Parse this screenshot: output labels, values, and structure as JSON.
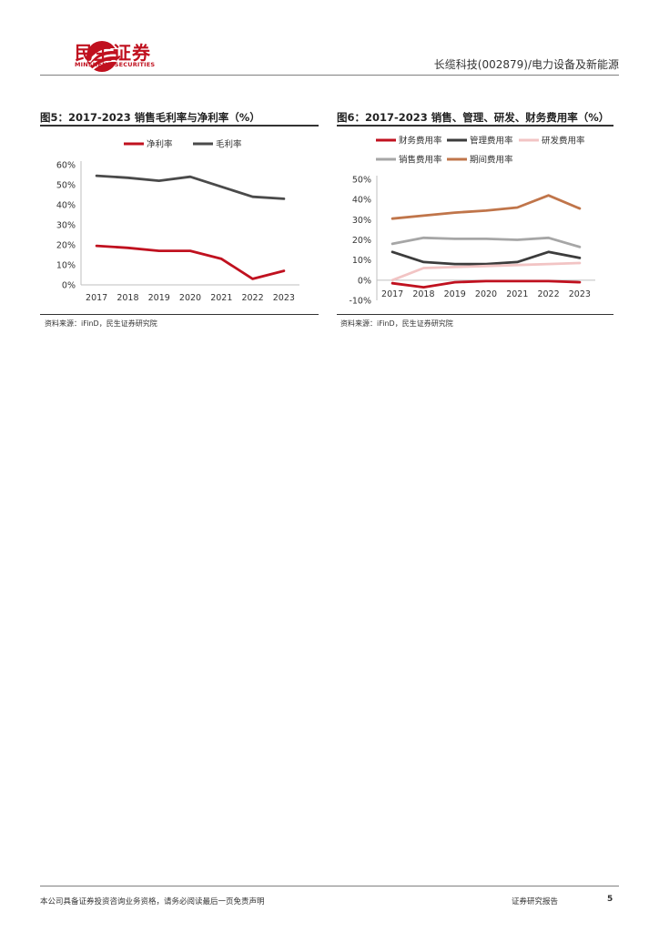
{
  "header": {
    "logo_cn": "民生证券",
    "logo_en": "MINSHENG SECURITIES",
    "report_tag": "长缆科技(002879)/电力设备及新能源"
  },
  "colors": {
    "brand": "#c0111f"
  },
  "figures": [
    {
      "title": "图5：2017-2023 销售毛利率与净利率（%）",
      "source": "资料来源：iFinD，民生证券研究院"
    },
    {
      "title": "图6：2017-2023 销售、管理、研发、财务费用率（%）",
      "source": "资料来源：iFinD，民生证券研究院"
    }
  ],
  "chart_data": [
    {
      "type": "line",
      "x": [
        "2017",
        "2018",
        "2019",
        "2020",
        "2021",
        "2022",
        "2023"
      ],
      "ylim": [
        0,
        60
      ],
      "ytick_labels": [
        "0%",
        "10%",
        "20%",
        "30%",
        "40%",
        "50%",
        "60%"
      ],
      "ytick_values": [
        0,
        10,
        20,
        30,
        40,
        50,
        60
      ],
      "grid": false,
      "legend_position": "top",
      "series": [
        {
          "name": "净利率",
          "color": "#c0111f",
          "values": [
            19.5,
            18.5,
            17,
            17,
            13,
            3,
            7
          ]
        },
        {
          "name": "毛利率",
          "color": "#4a4a4a",
          "values": [
            54.5,
            53.5,
            52,
            54,
            49,
            44,
            43
          ]
        }
      ]
    },
    {
      "type": "line",
      "x": [
        "2017",
        "2018",
        "2019",
        "2020",
        "2021",
        "2022",
        "2023"
      ],
      "ylim": [
        -10,
        50
      ],
      "ytick_labels": [
        "-10%",
        "0%",
        "10%",
        "20%",
        "30%",
        "40%",
        "50%"
      ],
      "ytick_values": [
        -10,
        0,
        10,
        20,
        30,
        40,
        50
      ],
      "grid": false,
      "legend_position": "top",
      "series": [
        {
          "name": "财务费用率",
          "color": "#c0111f",
          "values": [
            -1.5,
            -3.5,
            -1,
            -0.5,
            -0.5,
            -0.5,
            -1
          ]
        },
        {
          "name": "管理费用率",
          "color": "#3c3c3c",
          "values": [
            14,
            9,
            8,
            8,
            9,
            14,
            11
          ]
        },
        {
          "name": "研发费用率",
          "color": "#f2c4c4",
          "values": [
            0,
            6,
            6.5,
            7,
            7.5,
            8,
            8.5
          ]
        },
        {
          "name": "销售费用率",
          "color": "#a6a6a6",
          "values": [
            18,
            21,
            20.5,
            20.5,
            20,
            21,
            16.5
          ]
        },
        {
          "name": "期间费用率",
          "color": "#c0754a",
          "values": [
            30.5,
            32,
            33.5,
            34.5,
            36,
            42,
            35.5
          ]
        }
      ]
    }
  ],
  "footer": {
    "disclaimer": "本公司具备证券投资咨询业务资格，请务必阅读最后一页免责声明",
    "report_type": "证券研究报告",
    "page": "5"
  }
}
